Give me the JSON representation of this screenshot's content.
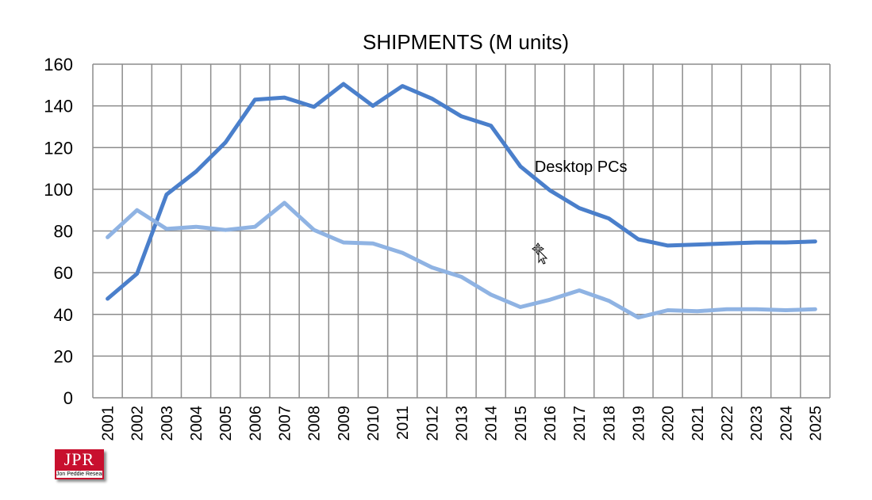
{
  "chart_data": {
    "type": "line",
    "title": "SHIPMENTS (M units)",
    "xlabel": "",
    "ylabel": "",
    "categories": [
      "2001",
      "2002",
      "2003",
      "2004",
      "2005",
      "2006",
      "2007",
      "2008",
      "2009",
      "2010",
      "2011",
      "2012",
      "2013",
      "2014",
      "2015",
      "2016",
      "2017",
      "2018",
      "2019",
      "2020",
      "2021",
      "2022",
      "2023",
      "2024",
      "2025"
    ],
    "ylim": [
      0,
      160
    ],
    "yticks": [
      0,
      20,
      40,
      60,
      80,
      100,
      120,
      140,
      160
    ],
    "grid": true,
    "series": [
      {
        "name": "Desktop PCs",
        "color": "#4a7fcb",
        "values": [
          47.5,
          59.5,
          97.5,
          108.5,
          122.5,
          143,
          144,
          139.5,
          150.5,
          140,
          149.5,
          143.5,
          135,
          130.5,
          111,
          99.5,
          91,
          86,
          76,
          73,
          73.5,
          74,
          74.5,
          74.5,
          75
        ]
      },
      {
        "color": "#8fb3e3",
        "values": [
          77,
          90,
          81,
          82,
          80.5,
          82,
          93.5,
          80.5,
          74.5,
          74,
          69.5,
          62.5,
          58,
          49.5,
          43.5,
          47,
          51.5,
          46.5,
          38.5,
          42,
          41.5,
          42.5,
          42.5,
          42,
          42.5
        ]
      }
    ],
    "annotations": [
      {
        "text": "Desktop PCs",
        "series": 0
      }
    ]
  },
  "logo": {
    "letters": "JPR",
    "subtitle": "Jon Peddie Research",
    "color": "#c8102e"
  },
  "cursor": {
    "icon": "move-cursor-icon"
  }
}
